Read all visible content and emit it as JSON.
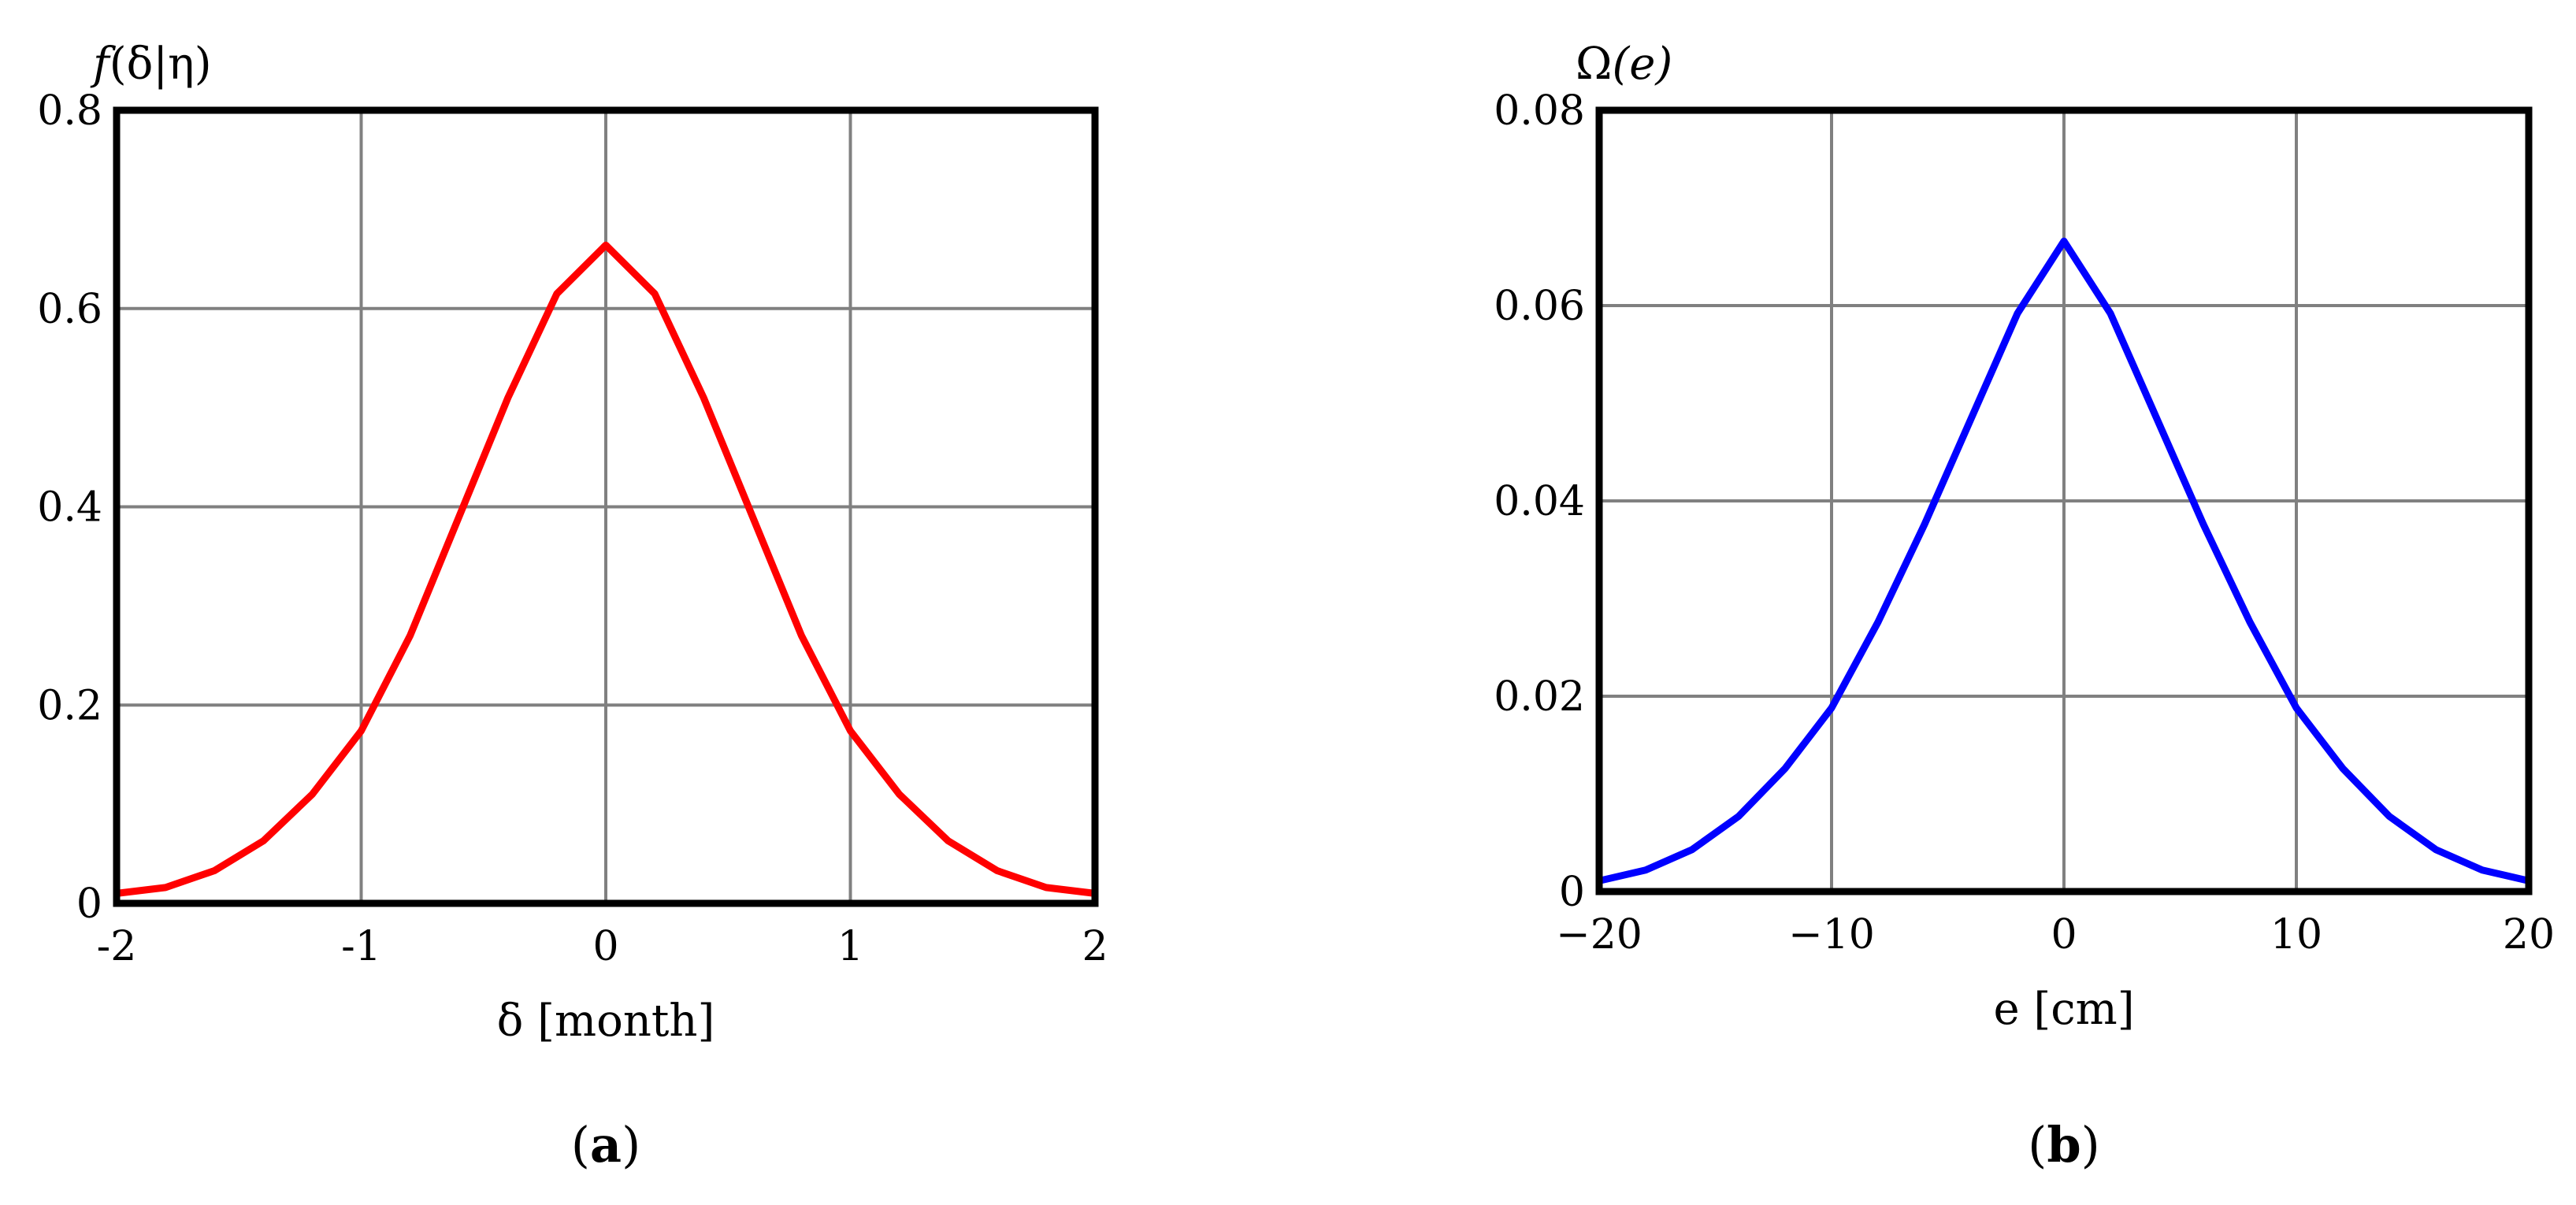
{
  "chart_data": [
    {
      "type": "line",
      "panel_label": "(a)",
      "panel_label_letter": "a",
      "ylabel": "f(δ|η)",
      "ylabel_func": "f",
      "ylabel_args": "(δ|η)",
      "xlabel": "δ [month]",
      "xlim": [
        -2,
        2
      ],
      "ylim": [
        0,
        0.8
      ],
      "xticks": [
        -2,
        -1,
        0,
        1,
        2
      ],
      "xtick_labels": [
        "-2",
        "-1",
        "0",
        "1",
        "2"
      ],
      "yticks": [
        0,
        0.2,
        0.4,
        0.6,
        0.8
      ],
      "ytick_labels": [
        "0",
        "0.2",
        "0.4",
        "0.6",
        "0.8"
      ],
      "grid": true,
      "color": "#ff0000",
      "series": [
        {
          "x": [
            -2.0,
            -1.8,
            -1.6,
            -1.4,
            -1.2,
            -1.0,
            -0.8,
            -0.6,
            -0.4,
            -0.2,
            0.0,
            0.2,
            0.4,
            0.6,
            0.8,
            1.0,
            1.2,
            1.4,
            1.6,
            1.8,
            2.0
          ],
          "y": [
            0.01,
            0.016,
            0.033,
            0.063,
            0.11,
            0.174,
            0.27,
            0.39,
            0.51,
            0.615,
            0.664,
            0.615,
            0.51,
            0.39,
            0.27,
            0.174,
            0.11,
            0.063,
            0.033,
            0.016,
            0.01
          ]
        }
      ]
    },
    {
      "type": "line",
      "panel_label": "(b)",
      "panel_label_letter": "b",
      "ylabel": "Ω(e)",
      "ylabel_func": "Ω",
      "ylabel_args": "(e)",
      "xlabel": "e [cm]",
      "xlim": [
        -20,
        20
      ],
      "ylim": [
        0,
        0.08
      ],
      "xticks": [
        -20,
        -10,
        0,
        10,
        20
      ],
      "xtick_labels": [
        "−20",
        "−10",
        "0",
        "10",
        "20"
      ],
      "yticks": [
        0,
        0.02,
        0.04,
        0.06,
        0.08
      ],
      "ytick_labels": [
        "0",
        "0.02",
        "0.04",
        "0.06",
        "0.08"
      ],
      "grid": true,
      "color": "#0000ff",
      "series": [
        {
          "x": [
            -20,
            -18,
            -16,
            -14,
            -12,
            -10,
            -8,
            -6,
            -4,
            -2,
            0,
            2,
            4,
            6,
            8,
            10,
            12,
            14,
            16,
            18,
            20
          ],
          "y": [
            0.0011,
            0.0022,
            0.0043,
            0.0077,
            0.0126,
            0.0188,
            0.0276,
            0.0376,
            0.0484,
            0.0592,
            0.0666,
            0.0592,
            0.0484,
            0.0376,
            0.0276,
            0.0188,
            0.0126,
            0.0077,
            0.0043,
            0.0022,
            0.0011
          ]
        }
      ]
    }
  ]
}
